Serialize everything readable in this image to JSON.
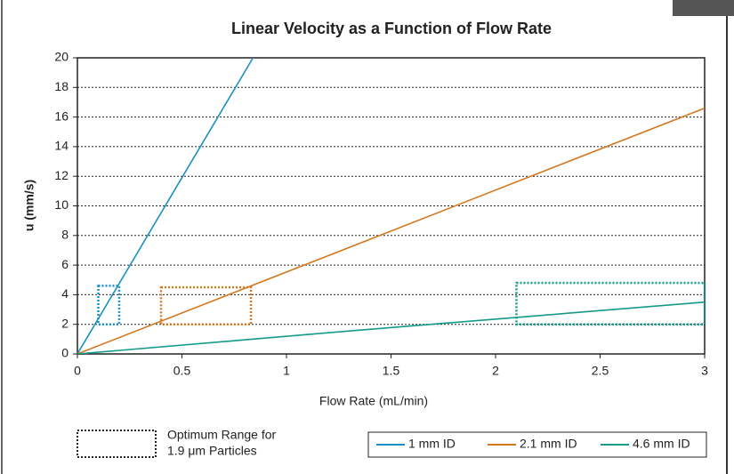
{
  "chart_data": {
    "type": "line",
    "title": "Linear Velocity as a Function of Flow Rate",
    "x_label": "Flow Rate (mL/min)",
    "y_label": "u (mm/s)",
    "xlim": [
      0,
      3
    ],
    "xticks": [
      0,
      0.5,
      1,
      1.5,
      2,
      2.5,
      3
    ],
    "ylim": [
      0,
      20
    ],
    "yticks": [
      0,
      2,
      4,
      6,
      8,
      10,
      12,
      14,
      16,
      18,
      20
    ],
    "grid": true,
    "series": [
      {
        "name": "1 mm ID",
        "color": "#1a8fc4",
        "x": [
          0,
          0.84
        ],
        "values": [
          0,
          20
        ]
      },
      {
        "name": "2.1 mm ID",
        "color": "#d4781e",
        "x": [
          0,
          3
        ],
        "values": [
          0,
          16.6
        ]
      },
      {
        "name": "4.6 mm ID",
        "color": "#129a8a",
        "x": [
          0,
          1.3,
          3
        ],
        "values": [
          0,
          1.55,
          3.5
        ]
      }
    ],
    "region_label": [
      "Optimum Range for",
      "1.9 μm Particles"
    ],
    "regions": [
      {
        "color": "#1a8fc4",
        "x": [
          0.1,
          0.2
        ],
        "y": [
          2,
          4.6
        ]
      },
      {
        "color": "#d4781e",
        "x": [
          0.4,
          0.83
        ],
        "y": [
          2,
          4.5
        ]
      },
      {
        "color": "#129a8a",
        "x": [
          2.1,
          3
        ],
        "y": [
          2,
          4.8
        ]
      }
    ]
  }
}
